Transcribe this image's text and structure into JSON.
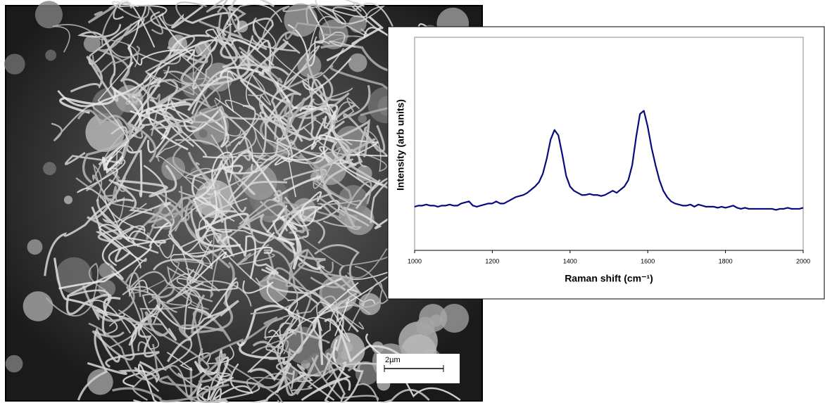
{
  "chart_data": {
    "type": "line",
    "x_label": "Raman shift (cm⁻¹)",
    "y_label": "Intensity (arb units)",
    "scale_bar_label": "2µm",
    "xlim": [
      1000,
      2000
    ],
    "xticks": [
      1000,
      1200,
      1400,
      1600,
      1800,
      2000
    ],
    "ylim": [
      0,
      100
    ],
    "x": [
      1000,
      1010,
      1020,
      1030,
      1040,
      1050,
      1060,
      1070,
      1080,
      1090,
      1100,
      1110,
      1120,
      1130,
      1140,
      1150,
      1160,
      1170,
      1180,
      1190,
      1200,
      1210,
      1220,
      1230,
      1240,
      1250,
      1260,
      1270,
      1280,
      1290,
      1300,
      1310,
      1320,
      1330,
      1340,
      1350,
      1360,
      1370,
      1380,
      1390,
      1400,
      1410,
      1420,
      1430,
      1440,
      1450,
      1460,
      1470,
      1480,
      1490,
      1500,
      1510,
      1520,
      1530,
      1540,
      1550,
      1560,
      1570,
      1580,
      1590,
      1600,
      1610,
      1620,
      1630,
      1640,
      1650,
      1660,
      1670,
      1680,
      1690,
      1700,
      1710,
      1720,
      1730,
      1740,
      1750,
      1760,
      1770,
      1780,
      1790,
      1800,
      1810,
      1820,
      1830,
      1840,
      1850,
      1860,
      1870,
      1880,
      1890,
      1900,
      1910,
      1920,
      1930,
      1940,
      1950,
      1960,
      1970,
      1980,
      1990,
      2000
    ],
    "series": [
      {
        "color": "#0a0a80",
        "values": [
          20.5,
          21,
          21,
          21.5,
          21,
          21,
          20.5,
          21,
          21,
          21.5,
          21,
          21,
          22,
          22.5,
          23,
          21,
          20.5,
          21,
          21.5,
          22,
          22,
          23,
          22,
          22,
          23,
          24,
          25,
          25.5,
          26,
          27,
          28.5,
          30,
          32,
          36,
          43,
          52,
          56.5,
          54,
          45,
          35,
          30,
          28,
          27,
          26,
          26,
          26.5,
          26,
          26,
          25.5,
          26,
          27,
          28,
          27,
          28.5,
          30,
          33,
          40,
          53,
          64,
          65.5,
          58,
          48,
          40,
          33,
          28,
          25,
          23,
          22,
          21.5,
          21,
          21,
          21.5,
          20.5,
          21.5,
          21,
          20.5,
          20.5,
          20.5,
          20,
          20.5,
          20,
          20.5,
          21,
          20,
          19.5,
          20,
          19.5,
          19.5,
          19.5,
          19.5,
          19.5,
          19.5,
          19.5,
          19,
          19.5,
          19.5,
          20,
          19.5,
          19.5,
          19.5,
          20
        ]
      }
    ]
  }
}
